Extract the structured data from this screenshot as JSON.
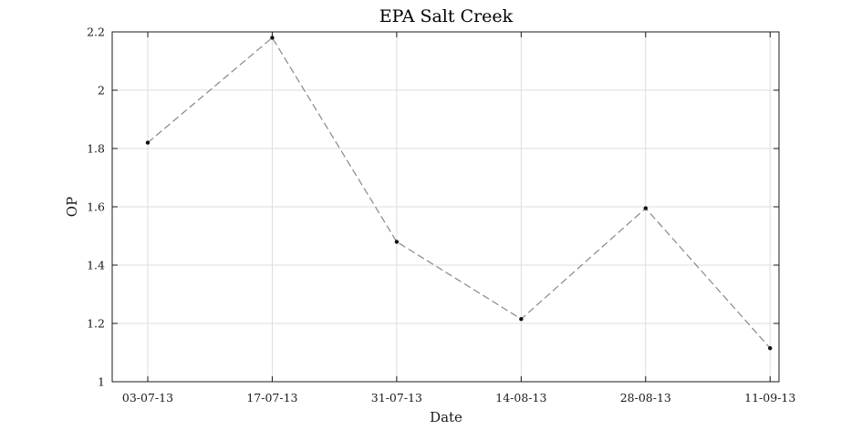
{
  "chart_data": {
    "type": "line",
    "title": "EPA Salt Creek",
    "xlabel": "Date",
    "ylabel": "OP",
    "x_ticks": [
      "03-07-13",
      "17-07-13",
      "31-07-13",
      "14-08-13",
      "28-08-13",
      "11-09-13"
    ],
    "x": [
      "03-07-13",
      "17-07-13",
      "31-07-13",
      "14-08-13",
      "28-08-13",
      "11-09-13"
    ],
    "xlim": [
      "29-06-13",
      "12-09-13"
    ],
    "y_ticks": [
      "1",
      "1.2",
      "1.4",
      "1.6",
      "1.8",
      "2",
      "2.2"
    ],
    "ylim": [
      1,
      2.2
    ],
    "series": [
      {
        "x": [
          "03-07-13",
          "17-07-13",
          "31-07-13",
          "14-08-13",
          "28-08-13",
          "11-09-13"
        ],
        "values": [
          1.82,
          2.18,
          1.48,
          1.215,
          1.595,
          1.115
        ]
      }
    ],
    "grid": true,
    "line_style": "dashed",
    "line_color": "#888888",
    "marker_color": "#111111"
  }
}
